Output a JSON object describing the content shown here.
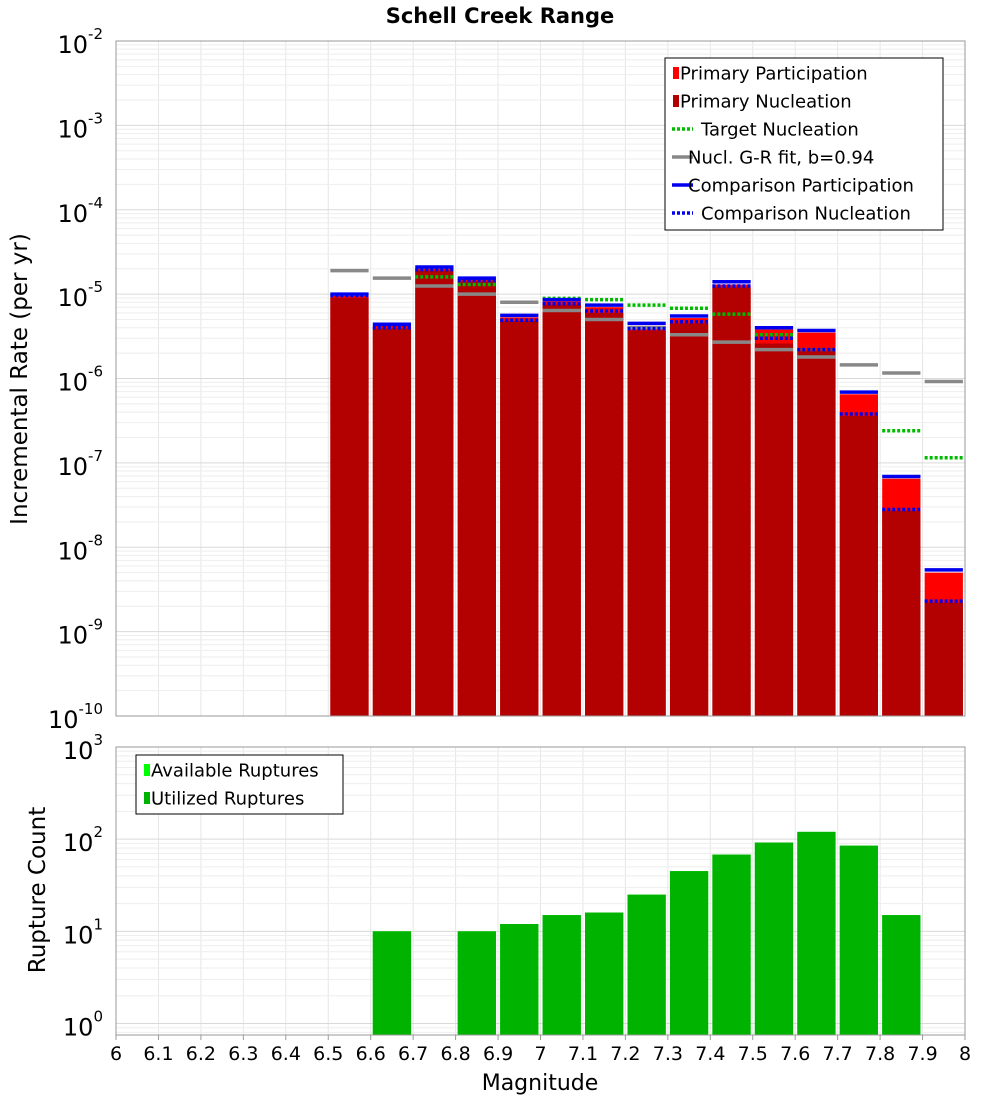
{
  "chart_data": [
    {
      "type": "bar",
      "title": "Schell Creek Range",
      "xlabel": "",
      "ylabel": "Incremental Rate (per yr)",
      "yscale": "log",
      "xlim": [
        6,
        8
      ],
      "ylim": [
        1e-10,
        0.01
      ],
      "y_ticks": [
        {
          "base": "10",
          "exp": "-2",
          "value": 0.01
        },
        {
          "base": "10",
          "exp": "-3",
          "value": 0.001
        },
        {
          "base": "10",
          "exp": "-4",
          "value": 0.0001
        },
        {
          "base": "10",
          "exp": "-5",
          "value": 1e-05
        },
        {
          "base": "10",
          "exp": "-6",
          "value": 1e-06
        },
        {
          "base": "10",
          "exp": "-7",
          "value": 1e-07
        },
        {
          "base": "10",
          "exp": "-8",
          "value": 1e-08
        },
        {
          "base": "10",
          "exp": "-9",
          "value": 1e-09
        },
        {
          "base": "10",
          "exp": "-10",
          "value": 1e-10
        }
      ],
      "grid": true,
      "legend_position": "top-right",
      "bin_centers": [
        6.55,
        6.65,
        6.75,
        6.85,
        6.95,
        7.05,
        7.15,
        7.25,
        7.35,
        7.45,
        7.55,
        7.65,
        7.75,
        7.85,
        7.95
      ],
      "bin_width": 0.1,
      "series": [
        {
          "name": "Primary Participation",
          "kind": "bar",
          "color": "#ff0000",
          "values": [
            9.5e-06,
            4.2e-06,
            2e-05,
            1.5e-05,
            5.3e-06,
            8.2e-06,
            7e-06,
            4.2e-06,
            5.2e-06,
            1.3e-05,
            3.8e-06,
            3.5e-06,
            6.5e-07,
            6.5e-08,
            5e-09
          ]
        },
        {
          "name": "Primary Nucleation",
          "kind": "bar",
          "color": "#b30000",
          "values": [
            9e-06,
            3.9e-06,
            1.9e-05,
            1.4e-05,
            4.8e-06,
            7.5e-06,
            6e-06,
            3.7e-06,
            4.5e-06,
            1.2e-05,
            2.6e-06,
            2.1e-06,
            3.6e-07,
            2.7e-08,
            2.2e-09
          ]
        },
        {
          "name": "Target Nucleation",
          "kind": "dotted",
          "color": "#00bb00",
          "values": [
            null,
            null,
            1.6e-05,
            1.3e-05,
            null,
            8.9e-06,
            8.6e-06,
            7.4e-06,
            6.8e-06,
            5.8e-06,
            3.3e-06,
            2.2e-06,
            null,
            2.4e-07,
            1.15e-07
          ]
        },
        {
          "name": "Nucl. G-R fit, b=0.94",
          "kind": "dash",
          "color": "#888888",
          "values": [
            1.9e-05,
            1.55e-05,
            1.25e-05,
            1e-05,
            8e-06,
            6.4e-06,
            5e-06,
            4e-06,
            3.3e-06,
            2.7e-06,
            2.2e-06,
            1.8e-06,
            1.45e-06,
            1.16e-06,
            9.2e-07
          ]
        },
        {
          "name": "Comparison Participation",
          "kind": "dash",
          "color": "#0000ee",
          "values": [
            1e-05,
            4.4e-06,
            2.1e-05,
            1.55e-05,
            5.6e-06,
            8.6e-06,
            7.4e-06,
            4.5e-06,
            5.5e-06,
            1.4e-05,
            4e-06,
            3.7e-06,
            6.9e-07,
            6.9e-08,
            5.4e-09
          ]
        },
        {
          "name": "Comparison Nucleation",
          "kind": "dotted",
          "color": "#0000ee",
          "values": [
            9.6e-06,
            4e-06,
            1.95e-05,
            1.45e-05,
            4.9e-06,
            7.7e-06,
            6.3e-06,
            3.9e-06,
            4.7e-06,
            1.25e-05,
            3e-06,
            2.2e-06,
            3.8e-07,
            2.8e-08,
            2.3e-09
          ]
        }
      ]
    },
    {
      "type": "bar",
      "title": "",
      "xlabel": "Magnitude",
      "ylabel": "Rupture Count",
      "yscale": "log",
      "xlim": [
        6,
        8
      ],
      "ylim": [
        0.75,
        1000
      ],
      "x_ticks": [
        "6",
        "6.1",
        "6.2",
        "6.3",
        "6.4",
        "6.5",
        "6.6",
        "6.7",
        "6.8",
        "6.9",
        "7",
        "7.1",
        "7.2",
        "7.3",
        "7.4",
        "7.5",
        "7.6",
        "7.7",
        "7.8",
        "7.9",
        "8"
      ],
      "y_ticks": [
        {
          "base": "10",
          "exp": "3",
          "value": 1000
        },
        {
          "base": "10",
          "exp": "2",
          "value": 100
        },
        {
          "base": "10",
          "exp": "1",
          "value": 10
        },
        {
          "base": "10",
          "exp": "0",
          "value": 1
        }
      ],
      "grid": true,
      "legend_position": "top-left",
      "bin_centers": [
        6.65,
        6.85,
        6.95,
        7.05,
        7.15,
        7.25,
        7.35,
        7.45,
        7.55,
        7.65,
        7.75,
        7.85
      ],
      "bin_width": 0.1,
      "series": [
        {
          "name": "Available Ruptures",
          "kind": "bar",
          "color": "#00ff00",
          "values": [
            10,
            10,
            12,
            15,
            16,
            25,
            45,
            68,
            92,
            120,
            85,
            15
          ]
        },
        {
          "name": "Utilized Ruptures",
          "kind": "bar",
          "color": "#00b300",
          "values": [
            10,
            10,
            12,
            15,
            16,
            25,
            45,
            68,
            92,
            120,
            85,
            15
          ]
        }
      ]
    }
  ]
}
